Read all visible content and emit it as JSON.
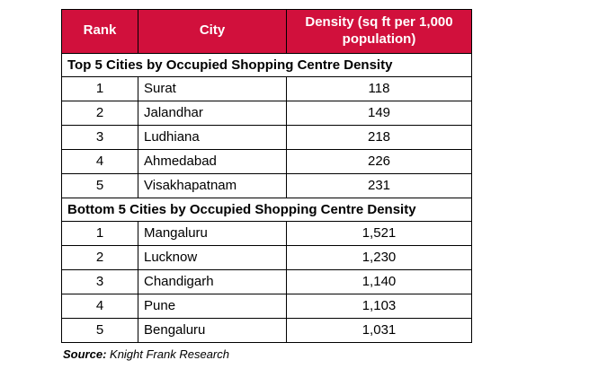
{
  "colors": {
    "header_bg": "#d1103c",
    "header_text": "#ffffff",
    "border": "#000000"
  },
  "table": {
    "headers": {
      "rank": "Rank",
      "city": "City",
      "density": "Density (sq ft per 1,000 population)"
    },
    "sections": [
      {
        "title": "Top 5 Cities by Occupied Shopping Centre Density",
        "rows": [
          {
            "rank": "1",
            "city": "Surat",
            "density": "118"
          },
          {
            "rank": "2",
            "city": "Jalandhar",
            "density": "149"
          },
          {
            "rank": "3",
            "city": "Ludhiana",
            "density": "218"
          },
          {
            "rank": "4",
            "city": "Ahmedabad",
            "density": "226"
          },
          {
            "rank": "5",
            "city": "Visakhapatnam",
            "density": "231"
          }
        ]
      },
      {
        "title": "Bottom 5 Cities by Occupied Shopping Centre Density",
        "rows": [
          {
            "rank": "1",
            "city": "Mangaluru",
            "density": "1,521"
          },
          {
            "rank": "2",
            "city": "Lucknow",
            "density": "1,230"
          },
          {
            "rank": "3",
            "city": "Chandigarh",
            "density": "1,140"
          },
          {
            "rank": "4",
            "city": "Pune",
            "density": "1,103"
          },
          {
            "rank": "5",
            "city": "Bengaluru",
            "density": "1,031"
          }
        ]
      }
    ]
  },
  "source": {
    "label": "Source:",
    "text": " Knight Frank Research"
  },
  "chart_data": {
    "type": "table",
    "columns": [
      "Rank",
      "City",
      "Density (sq ft per 1,000 population)"
    ],
    "sections": [
      {
        "label": "Top 5 Cities by Occupied Shopping Centre Density",
        "rows": [
          [
            1,
            "Surat",
            118
          ],
          [
            2,
            "Jalandhar",
            149
          ],
          [
            3,
            "Ludhiana",
            218
          ],
          [
            4,
            "Ahmedabad",
            226
          ],
          [
            5,
            "Visakhapatnam",
            231
          ]
        ]
      },
      {
        "label": "Bottom 5 Cities by Occupied Shopping Centre Density",
        "rows": [
          [
            1,
            "Mangaluru",
            1521
          ],
          [
            2,
            "Lucknow",
            1230
          ],
          [
            3,
            "Chandigarh",
            1140
          ],
          [
            4,
            "Pune",
            1103
          ],
          [
            5,
            "Bengaluru",
            1031
          ]
        ]
      }
    ],
    "source": "Knight Frank Research"
  }
}
